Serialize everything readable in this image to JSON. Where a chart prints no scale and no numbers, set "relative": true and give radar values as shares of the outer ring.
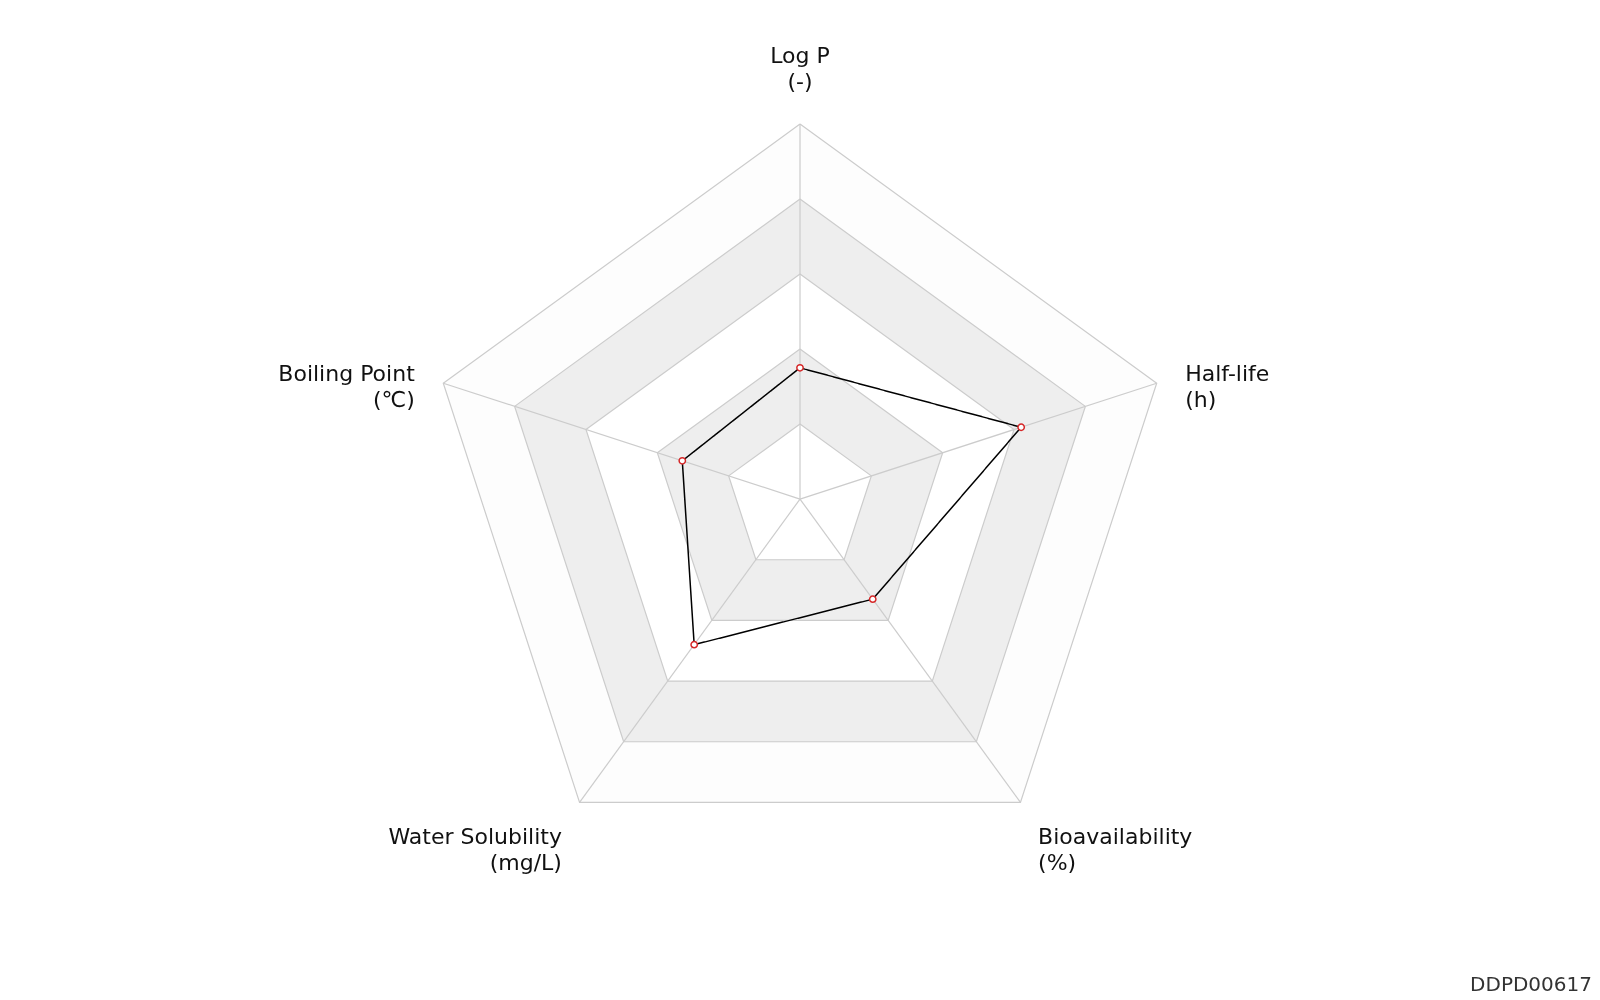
{
  "chart_data": {
    "type": "radar",
    "relative": true,
    "grid": true,
    "marker": "circle",
    "categories": [
      "Log P\n(-)",
      "Half-life\n(h)",
      "Bioavailability\n(%)",
      "Water Solubility\n(mg/L)",
      "Boiling Point\n(℃)"
    ],
    "series": [
      {
        "color": "#000000",
        "values": [
          0.35,
          0.62,
          0.33,
          0.48,
          0.33
        ]
      }
    ],
    "annotations": [
      "DDPD00617"
    ]
  }
}
